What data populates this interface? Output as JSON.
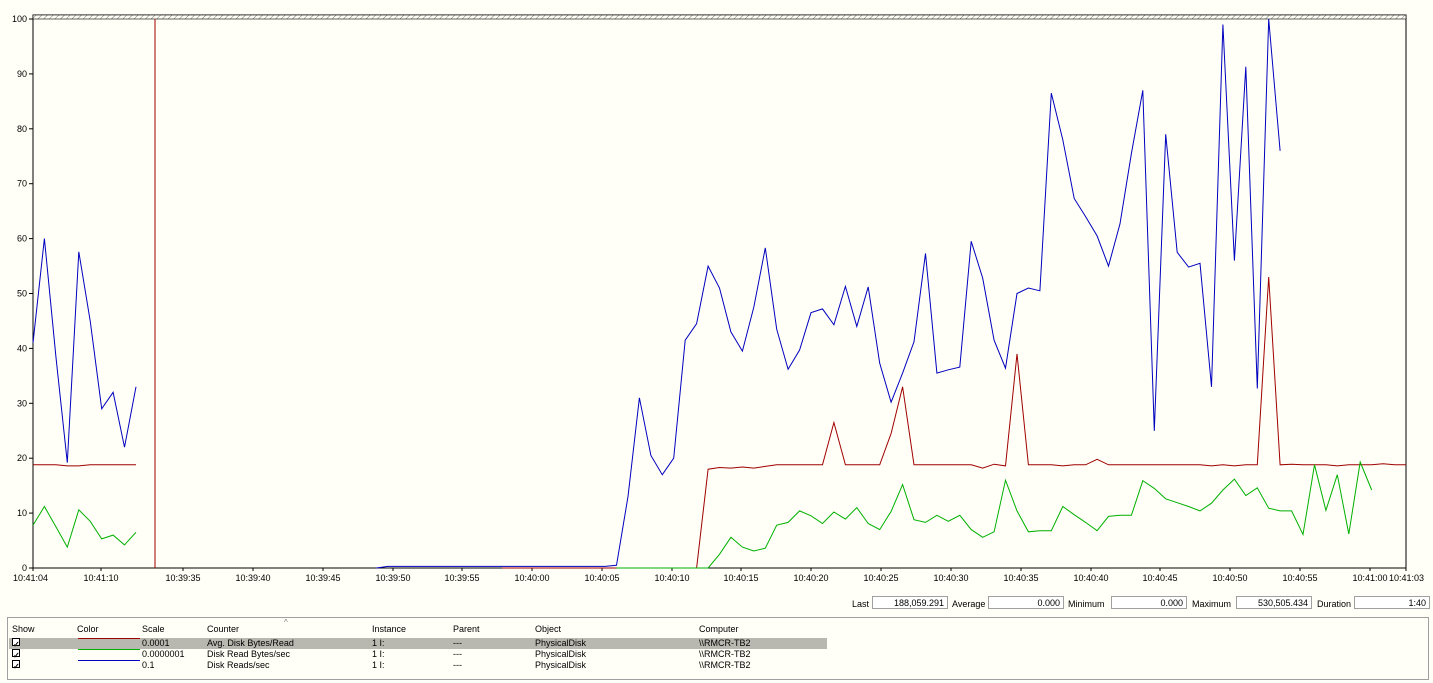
{
  "chart_data": {
    "type": "line",
    "ylim": [
      0,
      100
    ],
    "yticks": [
      "0",
      "10",
      "20",
      "30",
      "40",
      "50",
      "60",
      "70",
      "80",
      "90",
      "100"
    ],
    "xticks": [
      "10:41:04",
      "10:41:10",
      "10:39:35",
      "10:39:40",
      "10:39:45",
      "10:39:50",
      "10:39:55",
      "10:40:00",
      "10:40:05",
      "10:40:10",
      "10:40:15",
      "10:40:20",
      "10:40:25",
      "10:40:30",
      "10:40:35",
      "10:40:40",
      "10:40:45",
      "10:40:50",
      "10:40:55",
      "10:41:00",
      "10:41:03"
    ],
    "grid": false,
    "series": [
      {
        "name": "Avg. Disk Bytes/Read",
        "color": "#a00000",
        "points": [
          [
            0,
            18.8
          ],
          [
            1,
            18.8
          ],
          [
            2,
            18.8
          ],
          [
            3,
            18.6
          ],
          [
            4,
            18.6
          ],
          [
            5,
            18.8
          ],
          [
            6,
            18.8
          ],
          [
            7,
            18.8
          ],
          [
            8,
            18.8
          ],
          [
            9,
            18.8
          ],
          [
            41,
            0
          ],
          [
            42,
            0
          ],
          [
            43,
            0
          ],
          [
            44,
            0
          ],
          [
            45,
            0
          ],
          [
            46,
            0
          ],
          [
            47,
            0
          ],
          [
            48,
            0
          ],
          [
            49,
            0
          ],
          [
            50,
            0
          ],
          [
            51,
            0
          ],
          [
            52,
            0
          ],
          [
            53,
            0
          ],
          [
            54,
            0
          ],
          [
            55,
            0
          ],
          [
            56,
            0
          ],
          [
            57,
            0
          ],
          [
            58,
            0
          ],
          [
            59,
            18
          ],
          [
            60,
            18.3
          ],
          [
            61,
            18.2
          ],
          [
            62,
            18.4
          ],
          [
            63,
            18.2
          ],
          [
            64,
            18.5
          ],
          [
            65,
            18.8
          ],
          [
            66,
            18.8
          ],
          [
            67,
            18.8
          ],
          [
            68,
            18.8
          ],
          [
            69,
            18.8
          ],
          [
            70,
            26.5
          ],
          [
            71,
            18.8
          ],
          [
            72,
            18.8
          ],
          [
            73,
            18.8
          ],
          [
            74,
            18.8
          ],
          [
            75,
            24.5
          ],
          [
            76,
            33
          ],
          [
            77,
            18.8
          ],
          [
            78,
            18.8
          ],
          [
            79,
            18.8
          ],
          [
            80,
            18.8
          ],
          [
            81,
            18.8
          ],
          [
            82,
            18.8
          ],
          [
            83,
            18.2
          ],
          [
            84,
            18.9
          ],
          [
            85,
            18.6
          ],
          [
            86,
            39
          ],
          [
            87,
            18.8
          ],
          [
            88,
            18.8
          ],
          [
            89,
            18.8
          ],
          [
            90,
            18.6
          ],
          [
            91,
            18.8
          ],
          [
            92,
            18.8
          ],
          [
            93,
            19.8
          ],
          [
            94,
            18.8
          ],
          [
            95,
            18.8
          ],
          [
            96,
            18.8
          ],
          [
            97,
            18.8
          ],
          [
            98,
            18.8
          ],
          [
            99,
            18.8
          ],
          [
            100,
            18.8
          ],
          [
            101,
            18.8
          ],
          [
            102,
            18.8
          ],
          [
            103,
            18.6
          ],
          [
            104,
            18.8
          ],
          [
            105,
            18.6
          ],
          [
            106,
            18.8
          ],
          [
            107,
            18.8
          ],
          [
            108,
            53
          ],
          [
            109,
            18.8
          ],
          [
            110,
            18.9
          ],
          [
            111,
            18.8
          ],
          [
            112,
            18.8
          ],
          [
            113,
            18.8
          ],
          [
            114,
            18.6
          ],
          [
            115,
            18.8
          ],
          [
            116,
            18.8
          ],
          [
            117,
            18.8
          ],
          [
            118,
            19
          ],
          [
            119,
            18.8
          ],
          [
            120,
            18.8
          ]
        ]
      },
      {
        "name": "Disk Read Bytes/sec",
        "color": "#00b000",
        "points": [
          [
            0,
            7.8
          ],
          [
            1,
            11.2
          ],
          [
            2,
            7.5
          ],
          [
            3,
            3.8
          ],
          [
            4,
            10.6
          ],
          [
            5,
            8.5
          ],
          [
            6,
            5.3
          ],
          [
            7,
            6
          ],
          [
            8,
            4.2
          ],
          [
            9,
            6.5
          ],
          [
            51,
            0
          ],
          [
            52,
            0
          ],
          [
            53,
            0
          ],
          [
            54,
            0
          ],
          [
            55,
            0
          ],
          [
            56,
            0
          ],
          [
            57,
            0
          ],
          [
            58,
            0
          ],
          [
            59,
            0
          ],
          [
            60,
            2.5
          ],
          [
            61,
            5.6
          ],
          [
            62,
            3.8
          ],
          [
            63,
            3.1
          ],
          [
            64,
            3.6
          ],
          [
            65,
            7.8
          ],
          [
            66,
            8.3
          ],
          [
            67,
            10.4
          ],
          [
            68,
            9.5
          ],
          [
            69,
            8.1
          ],
          [
            70,
            10.2
          ],
          [
            71,
            8.9
          ],
          [
            72,
            11
          ],
          [
            73,
            8.1
          ],
          [
            74,
            7
          ],
          [
            75,
            10.3
          ],
          [
            76,
            15.2
          ],
          [
            77,
            8.8
          ],
          [
            78,
            8.3
          ],
          [
            79,
            9.6
          ],
          [
            80,
            8.5
          ],
          [
            81,
            9.6
          ],
          [
            82,
            7
          ],
          [
            83,
            5.6
          ],
          [
            84,
            6.6
          ],
          [
            85,
            16
          ],
          [
            86,
            10.4
          ],
          [
            87,
            6.6
          ],
          [
            88,
            6.8
          ],
          [
            89,
            6.8
          ],
          [
            90,
            11.2
          ],
          [
            91,
            9.7
          ],
          [
            92,
            8.3
          ],
          [
            93,
            6.8
          ],
          [
            94,
            9.4
          ],
          [
            95,
            9.6
          ],
          [
            96,
            9.6
          ],
          [
            97,
            15.9
          ],
          [
            98,
            14.5
          ],
          [
            99,
            12.6
          ],
          [
            100,
            11.9
          ],
          [
            101,
            11.2
          ],
          [
            102,
            10.4
          ],
          [
            103,
            11.8
          ],
          [
            104,
            14.2
          ],
          [
            105,
            16.2
          ],
          [
            106,
            13.2
          ],
          [
            107,
            14.6
          ],
          [
            108,
            10.9
          ],
          [
            109,
            10.4
          ],
          [
            110,
            10.4
          ],
          [
            111,
            6.1
          ],
          [
            112,
            18.8
          ],
          [
            113,
            10.5
          ],
          [
            114,
            17
          ],
          [
            115,
            6.2
          ],
          [
            116,
            19.3
          ],
          [
            117,
            14.2
          ]
        ]
      },
      {
        "name": "Disk Reads/sec",
        "color": "#0000c0",
        "points": [
          [
            0,
            41
          ],
          [
            1,
            60
          ],
          [
            2,
            38.5
          ],
          [
            3,
            19.2
          ],
          [
            4,
            57.6
          ],
          [
            5,
            45
          ],
          [
            6,
            29
          ],
          [
            7,
            32
          ],
          [
            8,
            22
          ],
          [
            9,
            33
          ],
          [
            30,
            0
          ],
          [
            31,
            0.3
          ],
          [
            32,
            0.3
          ],
          [
            33,
            0.3
          ],
          [
            34,
            0.3
          ],
          [
            35,
            0.3
          ],
          [
            36,
            0.3
          ],
          [
            37,
            0.3
          ],
          [
            38,
            0.3
          ],
          [
            39,
            0.3
          ],
          [
            40,
            0.3
          ],
          [
            41,
            0.3
          ],
          [
            42,
            0.3
          ],
          [
            43,
            0.3
          ],
          [
            44,
            0.3
          ],
          [
            45,
            0.3
          ],
          [
            46,
            0.3
          ],
          [
            47,
            0.3
          ],
          [
            48,
            0.3
          ],
          [
            49,
            0.3
          ],
          [
            50,
            0.3
          ],
          [
            51,
            0.5
          ],
          [
            52,
            13
          ],
          [
            53,
            31
          ],
          [
            54,
            20.5
          ],
          [
            55,
            17
          ],
          [
            56,
            20
          ],
          [
            57,
            41.5
          ],
          [
            58,
            44.5
          ],
          [
            59,
            55
          ],
          [
            60,
            51
          ],
          [
            61,
            43
          ],
          [
            62,
            39.5
          ],
          [
            63,
            47.5
          ],
          [
            64,
            58.3
          ],
          [
            65,
            43.5
          ],
          [
            66,
            36.2
          ],
          [
            67,
            39.7
          ],
          [
            68,
            46.5
          ],
          [
            69,
            47.2
          ],
          [
            70,
            44.3
          ],
          [
            71,
            51.3
          ],
          [
            72,
            44
          ],
          [
            73,
            51.2
          ],
          [
            74,
            37.3
          ],
          [
            75,
            30.2
          ],
          [
            76,
            35.5
          ],
          [
            77,
            41.2
          ],
          [
            78,
            57.3
          ],
          [
            79,
            35.5
          ],
          [
            80,
            36.1
          ],
          [
            81,
            36.6
          ],
          [
            82,
            59.5
          ],
          [
            83,
            52.8
          ],
          [
            84,
            41.5
          ],
          [
            85,
            36.4
          ],
          [
            86,
            50
          ],
          [
            87,
            51
          ],
          [
            88,
            50.5
          ],
          [
            89,
            86.5
          ],
          [
            90,
            78
          ],
          [
            91,
            67.3
          ],
          [
            92,
            64
          ],
          [
            93,
            60.5
          ],
          [
            94,
            55
          ],
          [
            95,
            62.7
          ],
          [
            96,
            75.5
          ],
          [
            97,
            87
          ],
          [
            98,
            25
          ],
          [
            99,
            79
          ],
          [
            100,
            57.5
          ],
          [
            101,
            54.8
          ],
          [
            102,
            55.5
          ],
          [
            103,
            33
          ],
          [
            104,
            99
          ],
          [
            105,
            56
          ],
          [
            106,
            91.3
          ],
          [
            107,
            32.7
          ],
          [
            108,
            100
          ],
          [
            109,
            76
          ]
        ]
      }
    ]
  },
  "stats": {
    "last_label": "Last",
    "last_value": "188,059.291",
    "average_label": "Average",
    "average_value": "0.000",
    "minimum_label": "Minimum",
    "minimum_value": "0.000",
    "maximum_label": "Maximum",
    "maximum_value": "530,505.434",
    "duration_label": "Duration",
    "duration_value": "1:40"
  },
  "legend": {
    "headers": {
      "show": "Show",
      "color": "Color",
      "scale": "Scale",
      "counter": "Counter",
      "instance": "Instance",
      "parent": "Parent",
      "object": "Object",
      "computer": "Computer"
    },
    "rows": [
      {
        "checked": "✓",
        "color": "#a00000",
        "scale": "0.0001",
        "counter": "Avg. Disk Bytes/Read",
        "instance": "1 I:",
        "parent": "---",
        "object": "PhysicalDisk",
        "computer": "\\\\RMCR-TB2"
      },
      {
        "checked": "✓",
        "color": "#00b000",
        "scale": "0.0000001",
        "counter": "Disk Read Bytes/sec",
        "instance": "1 I:",
        "parent": "---",
        "object": "PhysicalDisk",
        "computer": "\\\\RMCR-TB2"
      },
      {
        "checked": "✓",
        "color": "#0000c0",
        "scale": "0.1",
        "counter": "Disk Reads/sec",
        "instance": "1 I:",
        "parent": "---",
        "object": "PhysicalDisk",
        "computer": "\\\\RMCR-TB2"
      }
    ]
  }
}
